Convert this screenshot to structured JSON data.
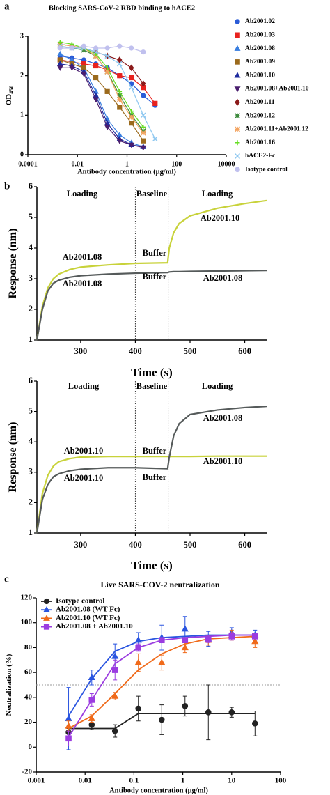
{
  "chart_data": [
    {
      "type": "line",
      "panel_label": "a",
      "title": "Blocking SARS-CoV-2 RBD binding to hACE2",
      "x_label": "Antibody concentration (μg/ml)",
      "y_label": "OD",
      "y_label_subscript": "450",
      "log_x": true,
      "xlim": [
        0.0001,
        10000
      ],
      "xticks": [
        0.0001,
        0.01,
        1,
        100,
        10000
      ],
      "ylim": [
        0,
        3
      ],
      "yticks": [
        0,
        1,
        2,
        3
      ],
      "legend": "right",
      "x": [
        0.002,
        0.006,
        0.018,
        0.055,
        0.16,
        0.5,
        1.5,
        4.5,
        13.5
      ],
      "series": [
        {
          "name": "Ab2001.02",
          "color": "#2a5bd7",
          "marker": "circle",
          "values": [
            2.5,
            2.45,
            2.4,
            2.3,
            2.2,
            2.0,
            1.8,
            1.5,
            1.25
          ]
        },
        {
          "name": "Ab2001.03",
          "color": "#e8221e",
          "marker": "square",
          "values": [
            2.4,
            2.35,
            2.3,
            2.25,
            2.15,
            2.0,
            1.95,
            1.7,
            1.3
          ]
        },
        {
          "name": "Ab2001.08",
          "color": "#3a7fe0",
          "marker": "triangle",
          "values": [
            2.55,
            2.4,
            2.2,
            1.6,
            0.9,
            0.5,
            0.3,
            0.2,
            null
          ]
        },
        {
          "name": "Ab2001.09",
          "color": "#9b6a1c",
          "marker": "square",
          "values": [
            2.4,
            2.3,
            2.2,
            1.95,
            1.6,
            1.2,
            0.8,
            0.35,
            null
          ]
        },
        {
          "name": "Ab2001.10",
          "color": "#1d2a9e",
          "marker": "triangle",
          "values": [
            2.3,
            2.25,
            2.1,
            1.5,
            0.8,
            0.4,
            0.25,
            0.2,
            null
          ]
        },
        {
          "name": "Ab2001.08+Ab2001.10",
          "color": "#4a1e6e",
          "marker": "triangle-down",
          "values": [
            2.2,
            2.2,
            2.05,
            1.4,
            0.7,
            0.35,
            0.25,
            0.18,
            null
          ]
        },
        {
          "name": "Ab2001.11",
          "color": "#8b1a1a",
          "marker": "diamond",
          "values": [
            2.8,
            2.75,
            2.7,
            2.6,
            2.5,
            2.4,
            2.2,
            1.8,
            null
          ]
        },
        {
          "name": "Ab2001.12",
          "color": "#3c8a3c",
          "marker": "star",
          "values": [
            2.75,
            2.7,
            2.65,
            2.5,
            2.1,
            1.5,
            1.0,
            0.6,
            null
          ]
        },
        {
          "name": "Ab2001.11+Ab2001.12",
          "color": "#f4a460",
          "marker": "star",
          "values": [
            2.8,
            2.75,
            2.7,
            2.5,
            2.1,
            1.4,
            0.95,
            0.55,
            null
          ]
        },
        {
          "name": "Ab2001.16",
          "color": "#66dd22",
          "marker": "plus",
          "values": [
            2.85,
            2.8,
            2.7,
            2.55,
            2.2,
            1.6,
            1.1,
            0.7,
            null
          ]
        },
        {
          "name": "hACE2-Fc",
          "color": "#8fc8f0",
          "marker": "x",
          "values": [
            2.75,
            2.7,
            2.7,
            2.6,
            2.5,
            2.3,
            1.7,
            1.0,
            0.4
          ]
        },
        {
          "name": "Isotype control",
          "color": "#c0c0ee",
          "marker": "circle",
          "values": [
            2.7,
            2.7,
            2.75,
            2.7,
            2.7,
            2.75,
            2.7,
            2.6,
            null
          ]
        }
      ]
    },
    {
      "type": "line",
      "panel_label": "b",
      "x_label": "Time (s)",
      "y_label": "Response (nm)",
      "xlim": [
        220,
        640
      ],
      "xticks": [
        300,
        400,
        500,
        600
      ],
      "ylim": [
        1,
        6
      ],
      "yticks": [
        1,
        2,
        3,
        4,
        5,
        6
      ],
      "phase_boundaries": [
        400,
        460
      ],
      "annotations": [
        "Loading",
        "Baseline",
        "Loading",
        "Ab2001.10",
        "Ab2001.08",
        "Buffer",
        "Buffer",
        "Ab2001.08",
        "Ab2001.08"
      ],
      "x": [
        220,
        230,
        240,
        250,
        260,
        280,
        300,
        350,
        400,
        459,
        462,
        470,
        480,
        500,
        550,
        600,
        640
      ],
      "series": [
        {
          "color": "#c8d23a",
          "values": [
            1.0,
            2.1,
            2.7,
            3.0,
            3.15,
            3.3,
            3.38,
            3.45,
            3.5,
            3.52,
            4.0,
            4.5,
            4.8,
            5.05,
            5.3,
            5.45,
            5.55
          ]
        },
        {
          "color": "#555a5a",
          "values": [
            1.0,
            2.0,
            2.6,
            2.85,
            2.95,
            3.05,
            3.1,
            3.15,
            3.18,
            3.2,
            3.22,
            3.23,
            3.23,
            3.24,
            3.25,
            3.26,
            3.27
          ]
        }
      ]
    },
    {
      "type": "line",
      "x_label": "Time (s)",
      "y_label": "Response (nm)",
      "xlim": [
        220,
        640
      ],
      "xticks": [
        300,
        400,
        500,
        600
      ],
      "ylim": [
        1,
        6
      ],
      "yticks": [
        1,
        2,
        3,
        4,
        5,
        6
      ],
      "phase_boundaries": [
        400,
        460
      ],
      "annotations": [
        "Loading",
        "Baseline",
        "Loading",
        "Ab2001.10",
        "Buffer",
        "Ab2001.08",
        "Ab2001.10",
        "Buffer",
        "Ab2001.10"
      ],
      "x": [
        220,
        230,
        240,
        250,
        260,
        280,
        300,
        350,
        400,
        459,
        462,
        470,
        480,
        500,
        550,
        600,
        640
      ],
      "series": [
        {
          "color": "#c8d23a",
          "values": [
            1.0,
            2.3,
            2.9,
            3.2,
            3.35,
            3.45,
            3.5,
            3.52,
            3.52,
            3.52,
            3.52,
            3.52,
            3.52,
            3.52,
            3.53,
            3.53,
            3.53
          ]
        },
        {
          "color": "#555a5a",
          "values": [
            1.0,
            2.1,
            2.6,
            2.85,
            2.95,
            3.05,
            3.1,
            3.15,
            3.15,
            3.12,
            3.5,
            4.2,
            4.6,
            4.9,
            5.05,
            5.13,
            5.17
          ]
        }
      ]
    },
    {
      "type": "line",
      "panel_label": "c",
      "title": "Live SARS-COV-2 neutralization",
      "x_label": "Antibody concentration (μg/ml)",
      "y_label": "Neutralization (%)",
      "log_x": true,
      "xlim": [
        0.001,
        100
      ],
      "xticks": [
        0.001,
        0.01,
        0.1,
        1,
        10,
        100
      ],
      "ylim": [
        -20,
        120
      ],
      "yticks": [
        -20,
        0,
        20,
        40,
        60,
        80,
        100,
        120
      ],
      "reference_line": 50,
      "legend": "upper left",
      "x": [
        0.0046,
        0.0137,
        0.041,
        0.123,
        0.37,
        1.11,
        3.33,
        10,
        30
      ],
      "series": [
        {
          "name": "Isotype control",
          "color": "#222222",
          "marker": "circle",
          "values": [
            12,
            18,
            13,
            31,
            22,
            33,
            28,
            28,
            19
          ],
          "errors": [
            3,
            4,
            5,
            10,
            12,
            8,
            22,
            4,
            10
          ],
          "fit": [
            15,
            15,
            15,
            27,
            27,
            27,
            27,
            27,
            27
          ]
        },
        {
          "name": "Ab2001.08 (WT Fc)",
          "color": "#2a55e0",
          "marker": "triangle",
          "values": [
            23,
            56,
            73,
            86,
            88,
            95,
            87,
            92,
            90
          ],
          "errors": [
            25,
            6,
            10,
            6,
            10,
            10,
            6,
            4,
            4
          ],
          "fit": [
            25,
            55,
            77,
            85,
            88,
            89,
            90,
            90,
            90
          ]
        },
        {
          "name": "Ab2001.10 (WT Fc)",
          "color": "#f06a1a",
          "marker": "triangle",
          "values": [
            17,
            23,
            41,
            68,
            68,
            80,
            86,
            90,
            85
          ],
          "errors": [
            4,
            3,
            3,
            7,
            6,
            4,
            4,
            4,
            5
          ],
          "fit": [
            15,
            25,
            43,
            62,
            75,
            83,
            87,
            88,
            89
          ]
        },
        {
          "name": "Ab2001.08 + Ab2001.10",
          "color": "#9b3ce0",
          "marker": "square",
          "values": [
            7,
            38,
            62,
            80,
            86,
            86,
            87,
            89,
            89
          ],
          "errors": [
            6,
            5,
            8,
            3,
            2,
            2,
            3,
            3,
            2
          ],
          "fit": [
            8,
            38,
            67,
            80,
            86,
            88,
            89,
            90,
            90
          ]
        }
      ]
    }
  ]
}
